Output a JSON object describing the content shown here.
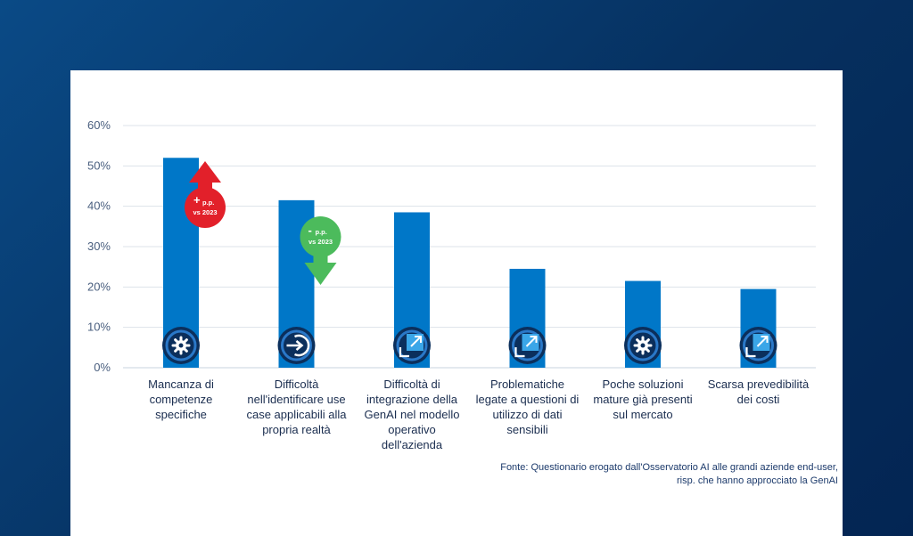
{
  "chart_data": {
    "type": "bar",
    "title": "",
    "xlabel": "",
    "ylabel": "",
    "ylim": [
      0,
      60
    ],
    "yticks": [
      "0%",
      "10%",
      "20%",
      "30%",
      "40%",
      "50%",
      "60%"
    ],
    "grid": true,
    "bar_color": "#0077c8",
    "categories": [
      "Mancanza di competenze specifiche",
      "Difficoltà nell'identificare use case applicabili alla propria realtà",
      "Difficoltà di integrazione della GenAI nel modello operativo dell'azienda",
      "Problematiche legate a questioni di utilizzo di dati sensibili",
      "Poche soluzioni mature già presenti sul mercato",
      "Scarsa prevedibilità dei costi"
    ],
    "category_lines": [
      [
        "Mancanza di",
        "competenze",
        "specifiche"
      ],
      [
        "Difficoltà",
        "nell'identificare use",
        "case applicabili alla",
        "propria realtà"
      ],
      [
        "Difficoltà di",
        "integrazione della",
        "GenAI nel modello",
        "operativo",
        "dell'azienda"
      ],
      [
        "Problematiche",
        "legate a questioni di",
        "utilizzo di dati",
        "sensibili"
      ],
      [
        "Poche soluzioni",
        "mature già presenti",
        "sul mercato"
      ],
      [
        "Scarsa prevedibilità",
        "dei costi"
      ]
    ],
    "values": [
      52,
      41.5,
      38.5,
      24.5,
      21.5,
      19.5
    ],
    "icons": [
      "gear-icon",
      "enter-icon",
      "expand-icon",
      "expand-icon",
      "gear-icon",
      "expand-icon"
    ],
    "annotations": [
      {
        "category_index": 0,
        "direction": "up",
        "sign": "+",
        "line1": "p.p.",
        "line2": "vs 2023",
        "color": "#e2202a"
      },
      {
        "category_index": 1,
        "direction": "down",
        "sign": "-",
        "line1": "p.p.",
        "line2": "vs 2023",
        "color": "#4cbb5c"
      }
    ]
  },
  "source": {
    "line1": "Fonte: Questionario erogato dall'Osservatorio AI alle grandi aziende end-user,",
    "line2": "risp. che hanno approcciato la GenAI"
  }
}
